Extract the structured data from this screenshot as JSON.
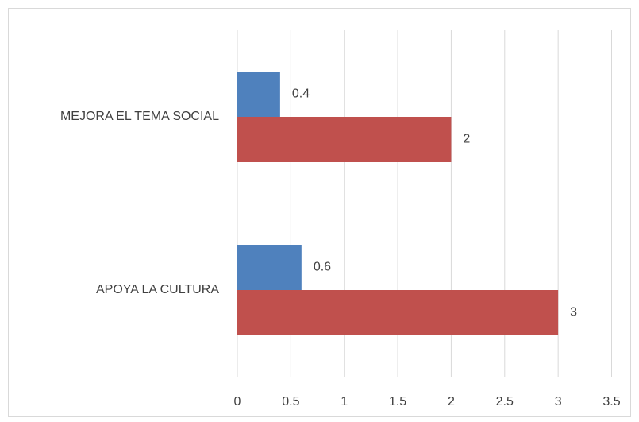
{
  "chart_data": {
    "type": "barh",
    "categories": [
      "MEJORA EL TEMA SOCIAL",
      "APOYA LA CULTURA"
    ],
    "series": [
      {
        "color": "#4f81bd",
        "values": [
          0.4,
          0.6
        ]
      },
      {
        "color": "#c0504d",
        "values": [
          2,
          3
        ]
      }
    ],
    "xlim": [
      0,
      3.5
    ],
    "xticks": [
      0,
      0.5,
      1,
      1.5,
      2,
      2.5,
      3,
      3.5
    ],
    "grid": true
  }
}
